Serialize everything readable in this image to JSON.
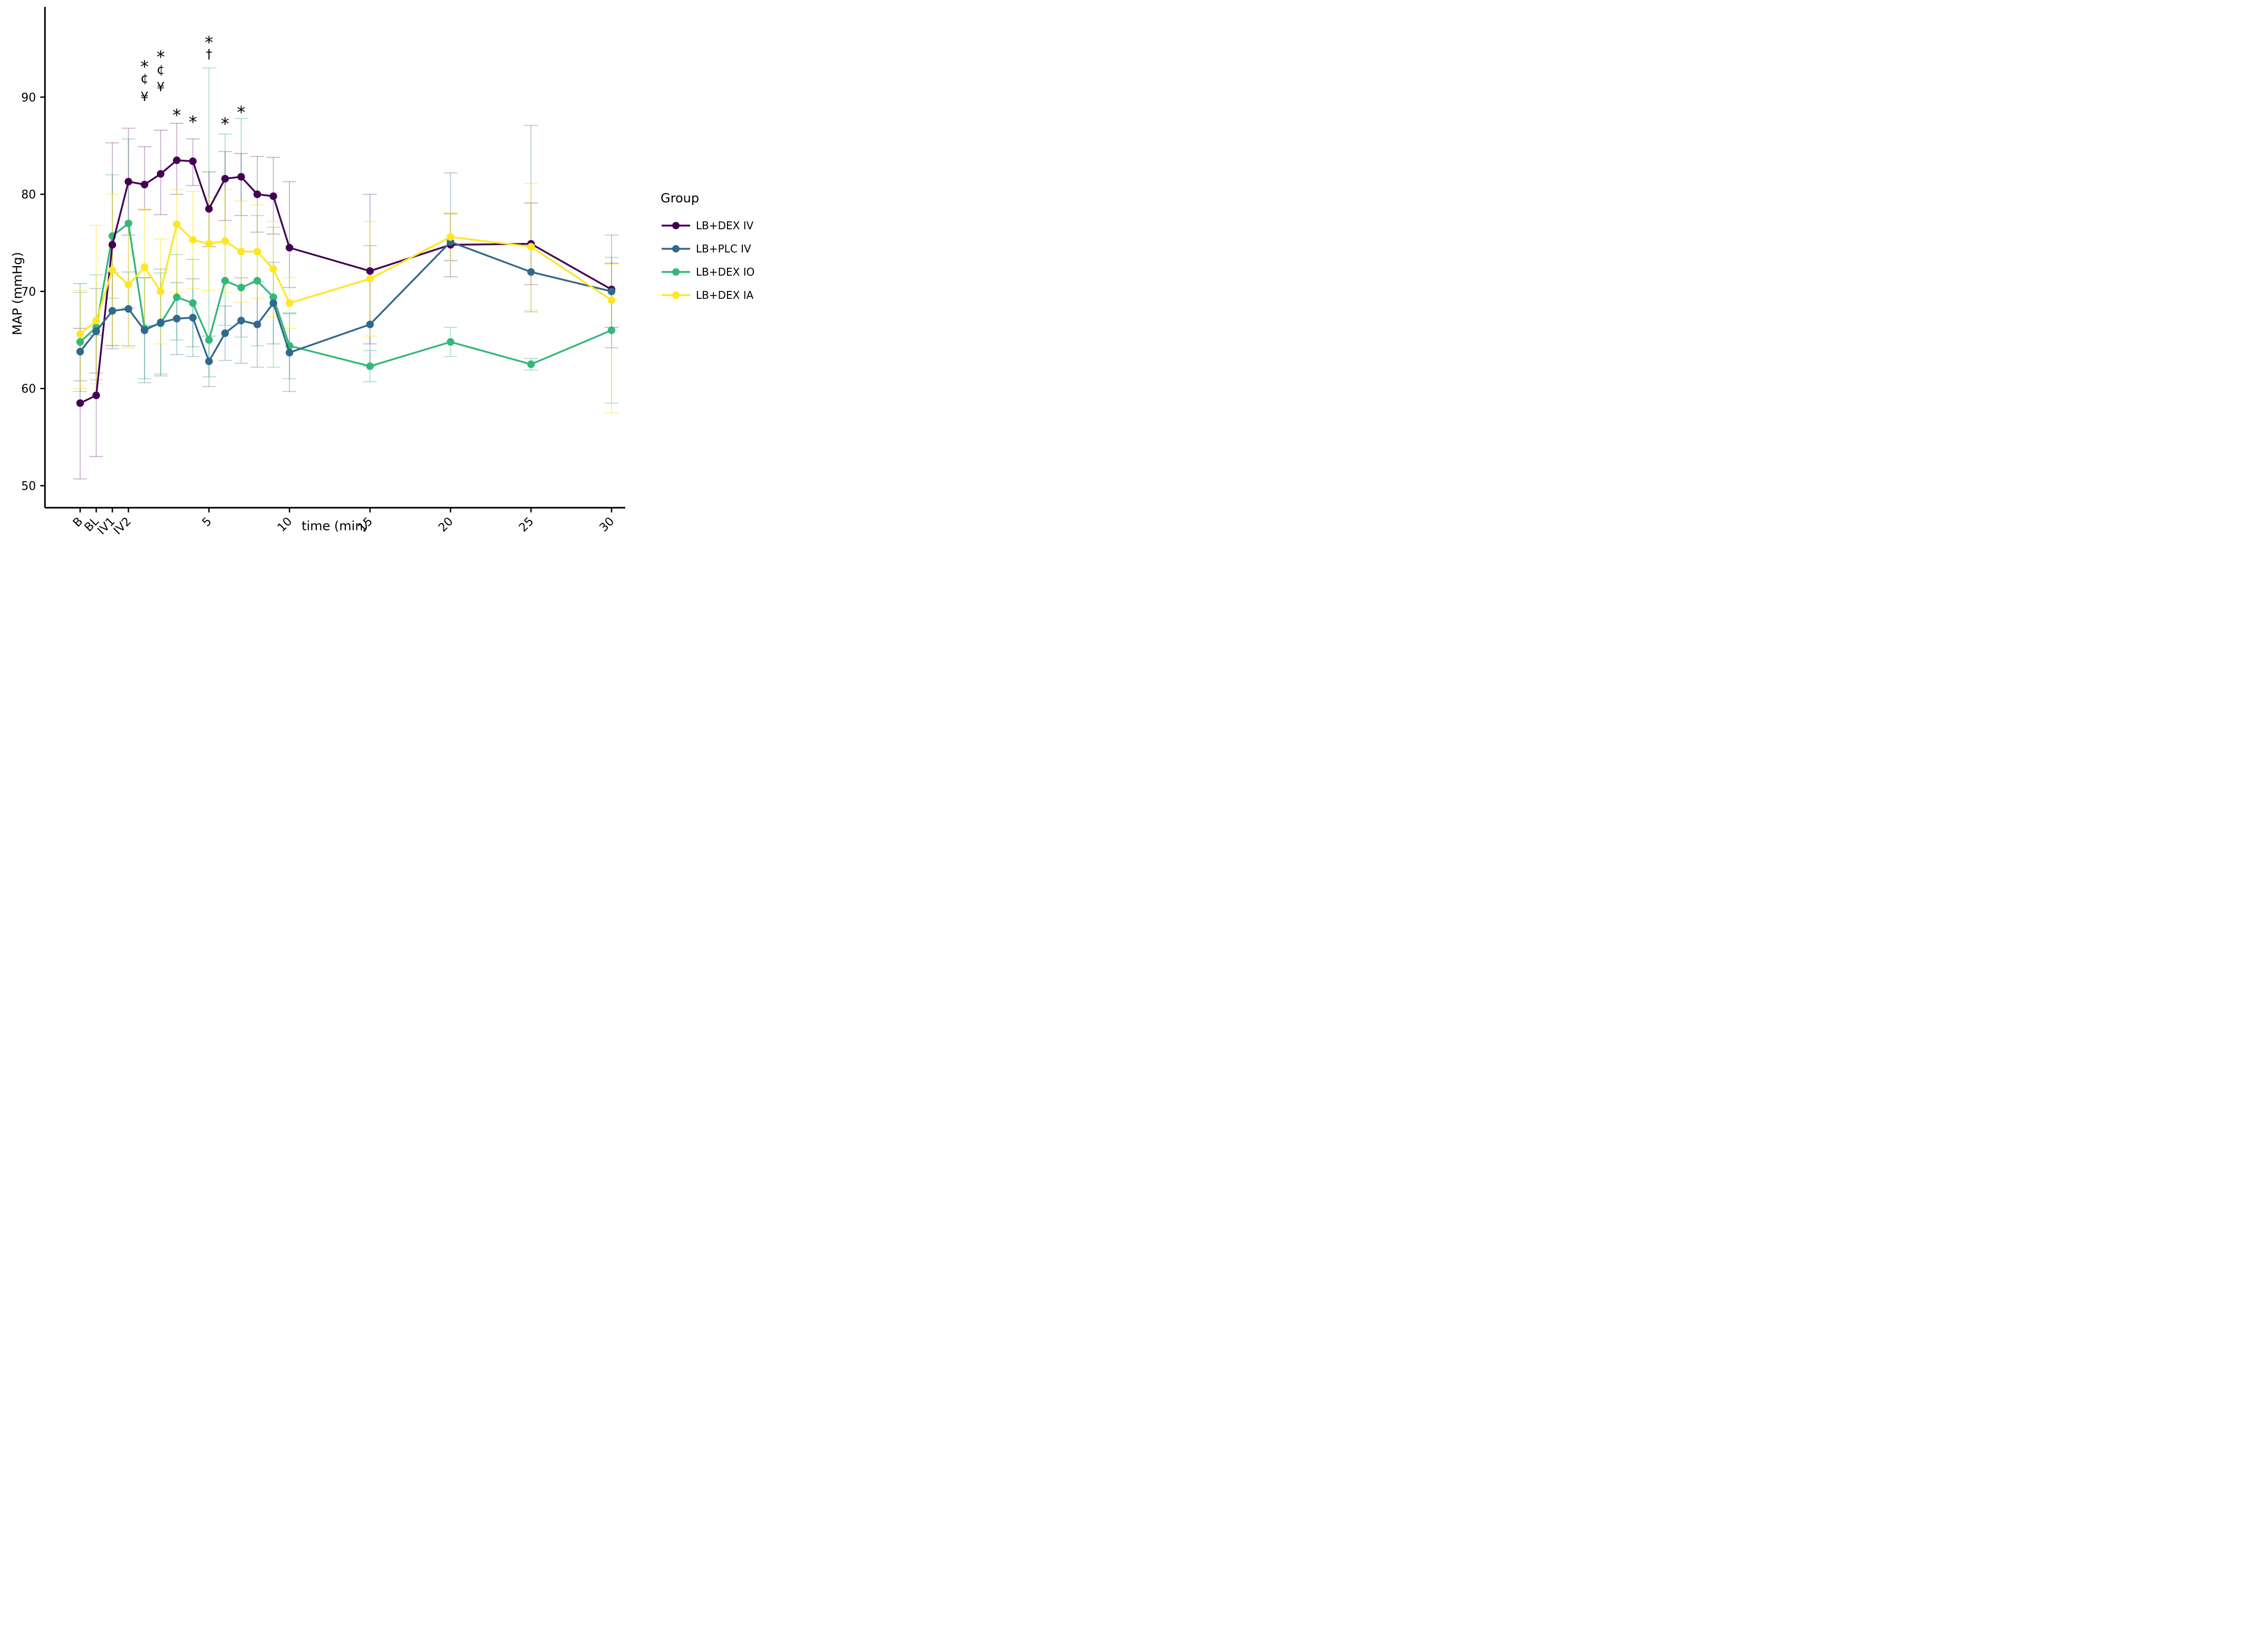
{
  "chart_data": {
    "type": "line",
    "title": "",
    "legend_title": "Group",
    "xlabel": "time (min)",
    "ylabel": "MAP (mmHg)",
    "ylim": [
      47,
      97
    ],
    "y_ticks": [
      50,
      60,
      70,
      80,
      90
    ],
    "grid": false,
    "legend_position": "right",
    "x_categories": [
      "B",
      "BL",
      "IV1",
      "IV2",
      "1",
      "2",
      "3",
      "4",
      "5",
      "6",
      "7",
      "8",
      "9",
      "10",
      "15",
      "20",
      "25",
      "30"
    ],
    "x_positions": [
      -3,
      -2,
      -1,
      0,
      1,
      2,
      3,
      4,
      5,
      6,
      7,
      8,
      9,
      10,
      15,
      20,
      25,
      30
    ],
    "x_tick_labels": [
      "B",
      "BL",
      "IV1",
      "IV2",
      "5",
      "10",
      "15",
      "20",
      "25",
      "30"
    ],
    "x_tick_positions": [
      -3,
      -2,
      -1,
      0,
      5,
      10,
      15,
      20,
      25,
      30
    ],
    "draw_order": [
      2,
      0,
      1,
      3
    ],
    "series": [
      {
        "name": "LB+DEX IV",
        "color": "#440154",
        "whisker_color": "rgba(68,1,84,0.30)",
        "values": [
          58.5,
          59.3,
          74.8,
          81.3,
          81.0,
          82.1,
          83.5,
          83.4,
          78.5,
          81.6,
          81.8,
          80.0,
          79.8,
          74.5,
          72.1,
          74.8,
          74.9,
          70.2
        ],
        "lo": [
          50.7,
          53.0,
          64.4,
          75.8,
          78.4,
          77.9,
          80.0,
          80.9,
          74.6,
          77.3,
          77.8,
          76.1,
          75.9,
          70.4,
          64.6,
          71.5,
          70.7,
          66.3
        ],
        "hi": [
          66.2,
          65.5,
          85.3,
          86.8,
          84.9,
          86.6,
          87.3,
          85.7,
          82.3,
          84.4,
          84.2,
          83.9,
          83.8,
          81.3,
          80.0,
          78.0,
          79.1,
          72.9
        ]
      },
      {
        "name": "LB+PLC IV",
        "color": "#31688E",
        "whisker_color": "rgba(49,104,142,0.35)",
        "values": [
          63.8,
          65.9,
          68.0,
          68.2,
          66.0,
          66.8,
          67.2,
          67.3,
          62.8,
          65.7,
          67.0,
          66.6,
          68.8,
          63.7,
          66.6,
          75.1,
          72.0,
          70.0
        ],
        "lo": [
          60.8,
          61.6,
          64.1,
          64.4,
          60.6,
          61.3,
          63.5,
          63.3,
          60.2,
          62.9,
          62.6,
          62.2,
          64.6,
          59.7,
          62.3,
          73.2,
          67.9,
          64.2
        ],
        "hi": [
          70.8,
          70.3,
          71.9,
          72.0,
          71.4,
          72.3,
          70.9,
          71.3,
          65.4,
          68.5,
          71.4,
          71.0,
          73.0,
          67.7,
          74.7,
          82.2,
          87.1,
          75.8
        ]
      },
      {
        "name": "LB+DEX IO",
        "color": "#35B779",
        "whisker_color": "rgba(53,183,121,0.40)",
        "values": [
          64.8,
          66.3,
          75.7,
          77.0,
          66.2,
          66.7,
          69.4,
          68.8,
          65.0,
          71.1,
          70.4,
          71.1,
          69.4,
          64.4,
          62.3,
          64.8,
          62.5,
          66.0
        ],
        "lo": [
          59.7,
          60.9,
          69.3,
          68.3,
          61.0,
          61.5,
          65.0,
          64.3,
          61.2,
          66.5,
          65.3,
          64.4,
          62.2,
          61.0,
          60.7,
          63.3,
          61.9,
          58.5
        ],
        "hi": [
          69.9,
          71.7,
          82.0,
          85.7,
          71.4,
          71.9,
          73.8,
          73.3,
          93.0,
          86.2,
          87.8,
          77.8,
          76.6,
          67.8,
          63.9,
          66.3,
          63.1,
          73.5
        ]
      },
      {
        "name": "LB+DEX IA",
        "color": "#FDE725",
        "whisker_color": "rgba(253,231,37,0.55)",
        "values": [
          65.6,
          67.0,
          72.2,
          70.7,
          72.5,
          70.0,
          76.9,
          75.3,
          74.9,
          75.2,
          74.1,
          74.1,
          72.3,
          68.8,
          71.3,
          75.6,
          74.6,
          69.1
        ],
        "lo": [
          60.0,
          60.5,
          64.5,
          64.2,
          66.5,
          64.6,
          69.9,
          70.3,
          70.1,
          69.9,
          68.9,
          69.3,
          67.4,
          66.2,
          65.4,
          73.1,
          68.1,
          57.5
        ],
        "hi": [
          70.1,
          76.8,
          80.0,
          77.2,
          78.5,
          75.4,
          80.5,
          80.3,
          79.7,
          80.5,
          79.3,
          78.9,
          77.2,
          71.4,
          77.2,
          78.1,
          81.1,
          72.8
        ]
      }
    ],
    "annotations": [
      {
        "x": 1,
        "symbols": [
          "*",
          "¢",
          "¥"
        ],
        "values": [
          93.3,
          92.0,
          90.1
        ]
      },
      {
        "x": 2,
        "symbols": [
          "*",
          "¢",
          "¥"
        ],
        "values": [
          94.3,
          92.9,
          91.1
        ]
      },
      {
        "x": 3,
        "symbols": [
          "*"
        ],
        "values": [
          88.3
        ]
      },
      {
        "x": 4,
        "symbols": [
          "*"
        ],
        "values": [
          87.6
        ]
      },
      {
        "x": 5,
        "symbols": [
          "*",
          "†"
        ],
        "values": [
          95.8,
          94.5
        ]
      },
      {
        "x": 6,
        "symbols": [
          "*"
        ],
        "values": [
          87.4
        ]
      },
      {
        "x": 7,
        "symbols": [
          "*"
        ],
        "values": [
          88.6
        ]
      }
    ]
  }
}
